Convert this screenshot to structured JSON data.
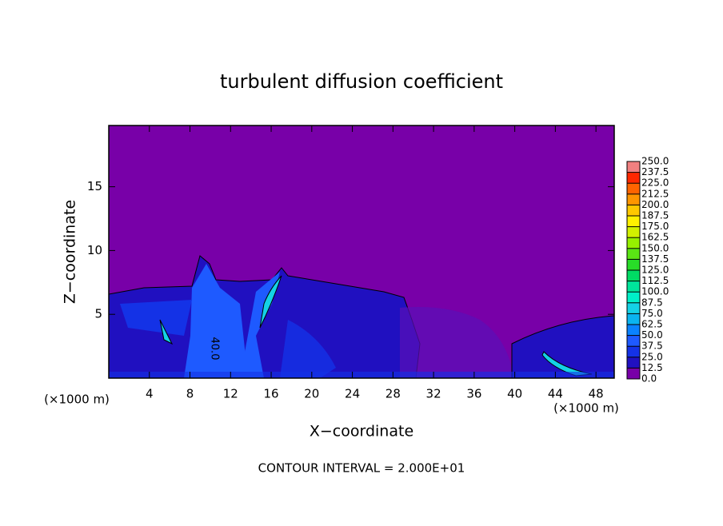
{
  "chart_data": {
    "type": "contour",
    "title": "turbulent diffusion coefficient",
    "xlabel": "X−coordinate",
    "ylabel": "Z−coordinate",
    "x_unit": "(×1000 m)",
    "x_unit_right": "(×1000 m)",
    "contour_label": "40.0",
    "footnote": "CONTOUR INTERVAL = 2.000E+01",
    "xlim": [
      0,
      49.8
    ],
    "xticks": [
      4,
      8,
      12,
      16,
      20,
      24,
      28,
      32,
      36,
      40,
      44,
      48
    ],
    "ylim": [
      0,
      19.8
    ],
    "yticks": [
      5,
      10,
      15
    ],
    "colorbar": {
      "ticks": [
        {
          "value": 0,
          "label": "0.0"
        },
        {
          "value": 12.5,
          "label": "12.5"
        },
        {
          "value": 25,
          "label": "25.0"
        },
        {
          "value": 37.5,
          "label": "37.5"
        },
        {
          "value": 50,
          "label": "50.0"
        },
        {
          "value": 62.5,
          "label": "62.5"
        },
        {
          "value": 75,
          "label": "75.0"
        },
        {
          "value": 87.5,
          "label": "87.5"
        },
        {
          "value": 100,
          "label": "100.0"
        },
        {
          "value": 112.5,
          "label": "112.5"
        },
        {
          "value": 125,
          "label": "125.0"
        },
        {
          "value": 137.5,
          "label": "137.5"
        },
        {
          "value": 150,
          "label": "150.0"
        },
        {
          "value": 162.5,
          "label": "162.5"
        },
        {
          "value": 175,
          "label": "175.0"
        },
        {
          "value": 187.5,
          "label": "187.5"
        },
        {
          "value": 200,
          "label": "200.0"
        },
        {
          "value": 212.5,
          "label": "212.5"
        },
        {
          "value": 225,
          "label": "225.0"
        },
        {
          "value": 237.5,
          "label": "237.5"
        },
        {
          "value": 250,
          "label": "250.0"
        }
      ],
      "colors": [
        "#7800a8",
        "#2010c0",
        "#1432e6",
        "#1e5aff",
        "#0a82ff",
        "#0ab4f0",
        "#14d2e6",
        "#00f0c8",
        "#00e69b",
        "#00dc64",
        "#28dc28",
        "#5ae614",
        "#96f000",
        "#d2f000",
        "#fff000",
        "#ffc800",
        "#ff9600",
        "#ff6400",
        "#ff2800",
        "#f08080"
      ]
    }
  }
}
